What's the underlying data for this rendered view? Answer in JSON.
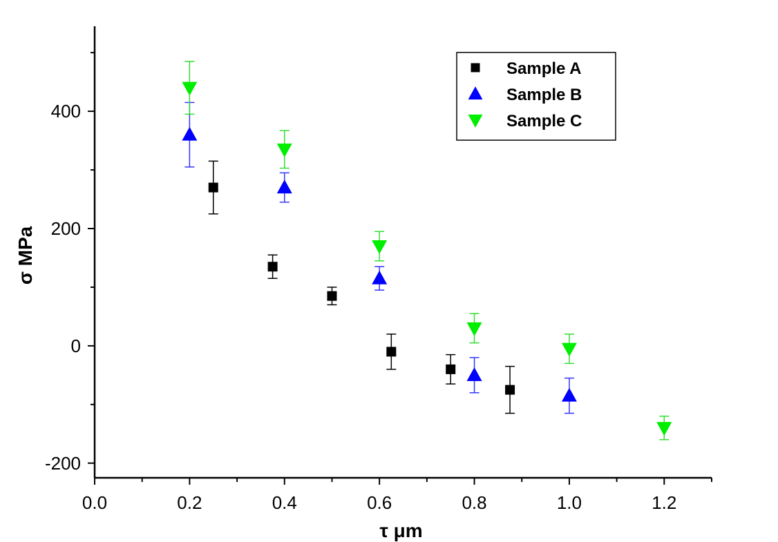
{
  "chart_data": {
    "type": "scatter",
    "title": "",
    "xlabel": "τ μm",
    "ylabel": "σ MPa",
    "xlim": [
      0.0,
      1.3
    ],
    "ylim": [
      -225,
      545
    ],
    "x_ticks": [
      0.0,
      0.2,
      0.4,
      0.6,
      0.8,
      1.0,
      1.2
    ],
    "x_tick_labels": [
      "0.0",
      "0.2",
      "0.4",
      "0.6",
      "0.8",
      "1.0",
      "1.2"
    ],
    "y_ticks": [
      -200,
      0,
      200,
      400
    ],
    "y_tick_labels": [
      "-200",
      "0",
      "200",
      "400"
    ],
    "grid": false,
    "legend_position": "top-right",
    "series": [
      {
        "name": "Sample A",
        "marker": "square",
        "color": "#000000",
        "x": [
          0.25,
          0.375,
          0.5,
          0.625,
          0.75,
          0.875
        ],
        "y": [
          270,
          135,
          85,
          -10,
          -40,
          -75
        ],
        "err": [
          45,
          20,
          15,
          30,
          25,
          40
        ]
      },
      {
        "name": "Sample B",
        "marker": "triangle-up",
        "color": "#0000ff",
        "x": [
          0.2,
          0.4,
          0.6,
          0.8,
          1.0
        ],
        "y": [
          360,
          270,
          115,
          -50,
          -85
        ],
        "err": [
          55,
          25,
          20,
          30,
          30
        ]
      },
      {
        "name": "Sample C",
        "marker": "triangle-down",
        "color": "#00ee00",
        "x": [
          0.2,
          0.4,
          0.6,
          0.8,
          1.0,
          1.2
        ],
        "y": [
          440,
          335,
          170,
          30,
          -5,
          -140
        ],
        "err": [
          45,
          32,
          25,
          25,
          25,
          20
        ]
      }
    ]
  }
}
